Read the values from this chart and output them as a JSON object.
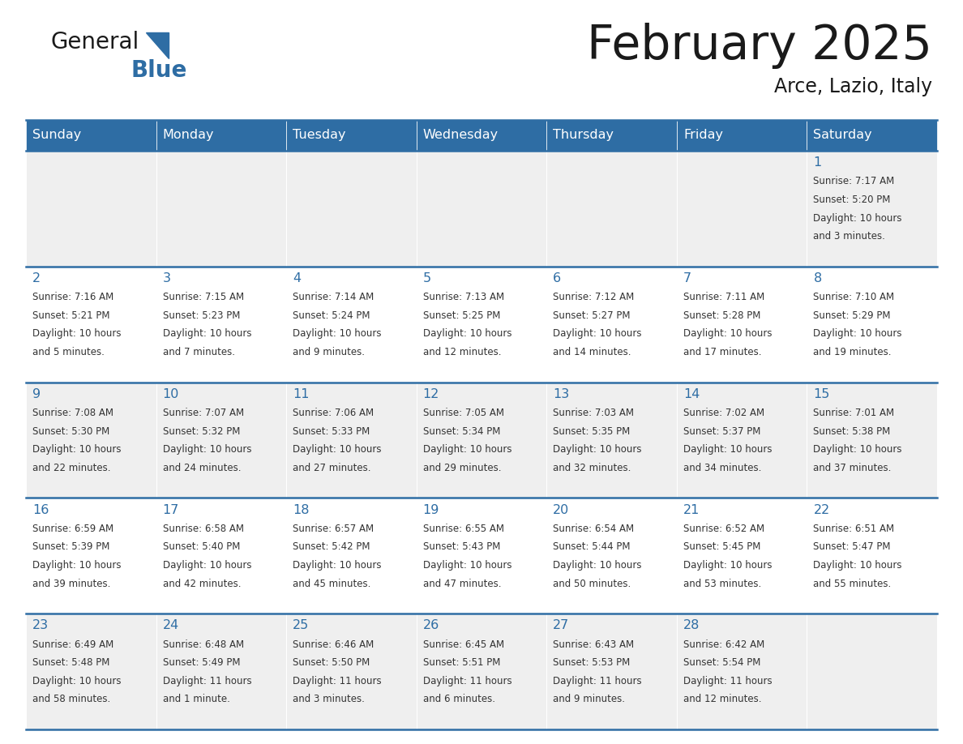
{
  "title": "February 2025",
  "subtitle": "Arce, Lazio, Italy",
  "days_of_week": [
    "Sunday",
    "Monday",
    "Tuesday",
    "Wednesday",
    "Thursday",
    "Friday",
    "Saturday"
  ],
  "header_bg": "#2E6DA4",
  "header_text": "#FFFFFF",
  "cell_bg_odd": "#EFEFEF",
  "cell_bg_even": "#FFFFFF",
  "line_color": "#2E6DA4",
  "day_num_color": "#2E6DA4",
  "text_color": "#333333",
  "title_color": "#1a1a1a",
  "calendar_data": [
    [
      null,
      null,
      null,
      null,
      null,
      null,
      {
        "day": "1",
        "sunrise": "7:17 AM",
        "sunset": "5:20 PM",
        "daylight1": "Daylight: 10 hours",
        "daylight2": "and 3 minutes."
      }
    ],
    [
      {
        "day": "2",
        "sunrise": "7:16 AM",
        "sunset": "5:21 PM",
        "daylight1": "Daylight: 10 hours",
        "daylight2": "and 5 minutes."
      },
      {
        "day": "3",
        "sunrise": "7:15 AM",
        "sunset": "5:23 PM",
        "daylight1": "Daylight: 10 hours",
        "daylight2": "and 7 minutes."
      },
      {
        "day": "4",
        "sunrise": "7:14 AM",
        "sunset": "5:24 PM",
        "daylight1": "Daylight: 10 hours",
        "daylight2": "and 9 minutes."
      },
      {
        "day": "5",
        "sunrise": "7:13 AM",
        "sunset": "5:25 PM",
        "daylight1": "Daylight: 10 hours",
        "daylight2": "and 12 minutes."
      },
      {
        "day": "6",
        "sunrise": "7:12 AM",
        "sunset": "5:27 PM",
        "daylight1": "Daylight: 10 hours",
        "daylight2": "and 14 minutes."
      },
      {
        "day": "7",
        "sunrise": "7:11 AM",
        "sunset": "5:28 PM",
        "daylight1": "Daylight: 10 hours",
        "daylight2": "and 17 minutes."
      },
      {
        "day": "8",
        "sunrise": "7:10 AM",
        "sunset": "5:29 PM",
        "daylight1": "Daylight: 10 hours",
        "daylight2": "and 19 minutes."
      }
    ],
    [
      {
        "day": "9",
        "sunrise": "7:08 AM",
        "sunset": "5:30 PM",
        "daylight1": "Daylight: 10 hours",
        "daylight2": "and 22 minutes."
      },
      {
        "day": "10",
        "sunrise": "7:07 AM",
        "sunset": "5:32 PM",
        "daylight1": "Daylight: 10 hours",
        "daylight2": "and 24 minutes."
      },
      {
        "day": "11",
        "sunrise": "7:06 AM",
        "sunset": "5:33 PM",
        "daylight1": "Daylight: 10 hours",
        "daylight2": "and 27 minutes."
      },
      {
        "day": "12",
        "sunrise": "7:05 AM",
        "sunset": "5:34 PM",
        "daylight1": "Daylight: 10 hours",
        "daylight2": "and 29 minutes."
      },
      {
        "day": "13",
        "sunrise": "7:03 AM",
        "sunset": "5:35 PM",
        "daylight1": "Daylight: 10 hours",
        "daylight2": "and 32 minutes."
      },
      {
        "day": "14",
        "sunrise": "7:02 AM",
        "sunset": "5:37 PM",
        "daylight1": "Daylight: 10 hours",
        "daylight2": "and 34 minutes."
      },
      {
        "day": "15",
        "sunrise": "7:01 AM",
        "sunset": "5:38 PM",
        "daylight1": "Daylight: 10 hours",
        "daylight2": "and 37 minutes."
      }
    ],
    [
      {
        "day": "16",
        "sunrise": "6:59 AM",
        "sunset": "5:39 PM",
        "daylight1": "Daylight: 10 hours",
        "daylight2": "and 39 minutes."
      },
      {
        "day": "17",
        "sunrise": "6:58 AM",
        "sunset": "5:40 PM",
        "daylight1": "Daylight: 10 hours",
        "daylight2": "and 42 minutes."
      },
      {
        "day": "18",
        "sunrise": "6:57 AM",
        "sunset": "5:42 PM",
        "daylight1": "Daylight: 10 hours",
        "daylight2": "and 45 minutes."
      },
      {
        "day": "19",
        "sunrise": "6:55 AM",
        "sunset": "5:43 PM",
        "daylight1": "Daylight: 10 hours",
        "daylight2": "and 47 minutes."
      },
      {
        "day": "20",
        "sunrise": "6:54 AM",
        "sunset": "5:44 PM",
        "daylight1": "Daylight: 10 hours",
        "daylight2": "and 50 minutes."
      },
      {
        "day": "21",
        "sunrise": "6:52 AM",
        "sunset": "5:45 PM",
        "daylight1": "Daylight: 10 hours",
        "daylight2": "and 53 minutes."
      },
      {
        "day": "22",
        "sunrise": "6:51 AM",
        "sunset": "5:47 PM",
        "daylight1": "Daylight: 10 hours",
        "daylight2": "and 55 minutes."
      }
    ],
    [
      {
        "day": "23",
        "sunrise": "6:49 AM",
        "sunset": "5:48 PM",
        "daylight1": "Daylight: 10 hours",
        "daylight2": "and 58 minutes."
      },
      {
        "day": "24",
        "sunrise": "6:48 AM",
        "sunset": "5:49 PM",
        "daylight1": "Daylight: 11 hours",
        "daylight2": "and 1 minute."
      },
      {
        "day": "25",
        "sunrise": "6:46 AM",
        "sunset": "5:50 PM",
        "daylight1": "Daylight: 11 hours",
        "daylight2": "and 3 minutes."
      },
      {
        "day": "26",
        "sunrise": "6:45 AM",
        "sunset": "5:51 PM",
        "daylight1": "Daylight: 11 hours",
        "daylight2": "and 6 minutes."
      },
      {
        "day": "27",
        "sunrise": "6:43 AM",
        "sunset": "5:53 PM",
        "daylight1": "Daylight: 11 hours",
        "daylight2": "and 9 minutes."
      },
      {
        "day": "28",
        "sunrise": "6:42 AM",
        "sunset": "5:54 PM",
        "daylight1": "Daylight: 11 hours",
        "daylight2": "and 12 minutes."
      },
      null
    ]
  ]
}
